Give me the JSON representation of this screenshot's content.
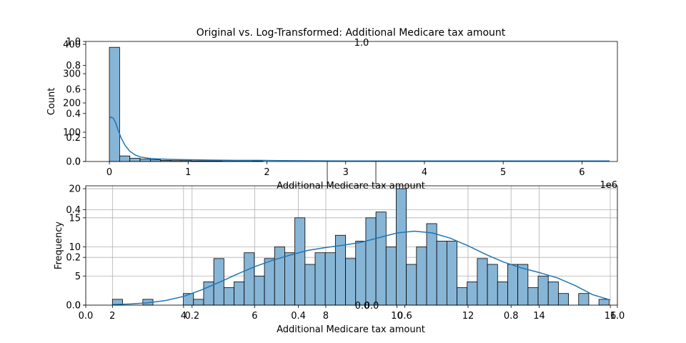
{
  "figure": {
    "title": "Original vs. Log-Transformed: Additional Medicare tax amount"
  },
  "chart_data": [
    {
      "type": "bar",
      "subtype": "histogram-with-kde",
      "title": "Original vs. Log-Transformed: Additional Medicare tax amount",
      "xlabel": "Additional Medicare tax amount",
      "ylabel": "Count",
      "x_offset_label": "1e6",
      "xlim": [
        -0.3,
        6.45
      ],
      "ylim": [
        0,
        410
      ],
      "xticks": [
        0,
        1,
        2,
        3,
        4,
        5,
        6
      ],
      "yticks": [
        0,
        100,
        200,
        300,
        400
      ],
      "grid": false,
      "bar_color": "#87b5d6",
      "line_color": "#1f77b4",
      "bins": [
        {
          "x0": 0.0,
          "x1": 0.13,
          "count": 390
        },
        {
          "x0": 0.13,
          "x1": 0.26,
          "count": 19
        },
        {
          "x0": 0.26,
          "x1": 0.39,
          "count": 11
        },
        {
          "x0": 0.39,
          "x1": 0.52,
          "count": 8
        },
        {
          "x0": 0.52,
          "x1": 0.65,
          "count": 6
        },
        {
          "x0": 0.65,
          "x1": 0.78,
          "count": 4
        },
        {
          "x0": 0.78,
          "x1": 0.91,
          "count": 3
        },
        {
          "x0": 0.91,
          "x1": 1.04,
          "count": 3
        },
        {
          "x0": 1.04,
          "x1": 1.17,
          "count": 2
        },
        {
          "x0": 1.17,
          "x1": 1.3,
          "count": 2
        },
        {
          "x0": 1.3,
          "x1": 1.43,
          "count": 2
        },
        {
          "x0": 1.43,
          "x1": 1.56,
          "count": 1
        },
        {
          "x0": 1.56,
          "x1": 1.69,
          "count": 1
        },
        {
          "x0": 1.69,
          "x1": 1.82,
          "count": 1
        },
        {
          "x0": 1.82,
          "x1": 1.95,
          "count": 2
        }
      ],
      "kde": {
        "x": [
          0.0,
          0.02,
          0.05,
          0.08,
          0.11,
          0.15,
          0.2,
          0.26,
          0.33,
          0.4,
          0.5,
          0.6,
          0.8,
          1.0,
          1.3,
          1.6,
          1.9,
          2.2,
          3.0,
          4.0,
          5.0,
          6.0,
          6.35
        ],
        "y": [
          145,
          152,
          148,
          132,
          108,
          80,
          55,
          35,
          22,
          15,
          11,
          9,
          7,
          6,
          5,
          4,
          4,
          3,
          2,
          2,
          2,
          2,
          2
        ]
      },
      "twin_axis": {
        "yticks": [
          0.0,
          0.2,
          0.4,
          0.6,
          0.8,
          1.0
        ],
        "ylim": [
          0,
          1
        ],
        "partial_label": "1.0"
      }
    },
    {
      "type": "bar",
      "subtype": "histogram-with-kde",
      "xlabel": "Additional Medicare tax amount",
      "ylabel": "Frequency",
      "xlim": [
        1.25,
        16.2
      ],
      "ylim": [
        0,
        20.5
      ],
      "xticks": [
        2,
        4,
        6,
        8,
        10,
        12,
        14,
        16
      ],
      "yticks": [
        0,
        5,
        10,
        15,
        20
      ],
      "grid": true,
      "bar_color": "#87b5d6",
      "line_color": "#1f77b4",
      "bin_start": 2.0,
      "bin_width": 0.285,
      "counts": [
        1,
        0,
        0,
        1,
        0,
        0,
        0,
        2,
        1,
        4,
        8,
        3,
        4,
        9,
        5,
        8,
        10,
        9,
        15,
        7,
        9,
        9,
        12,
        8,
        11,
        15,
        16,
        10,
        20,
        7,
        10,
        14,
        11,
        11,
        3,
        4,
        8,
        7,
        4,
        7,
        7,
        3,
        5,
        4,
        2,
        0,
        2,
        0,
        1
      ],
      "kde": {
        "x": [
          2,
          2.5,
          3,
          3.5,
          4,
          4.5,
          5,
          5.5,
          6,
          6.5,
          7,
          7.5,
          8,
          8.5,
          9,
          9.5,
          10,
          10.5,
          11,
          11.5,
          12,
          12.5,
          13,
          13.5,
          14,
          14.5,
          15,
          15.5,
          16
        ],
        "y": [
          0.1,
          0.2,
          0.4,
          0.8,
          1.5,
          2.6,
          3.9,
          5.3,
          6.6,
          7.7,
          8.6,
          9.4,
          9.9,
          10.3,
          10.8,
          11.6,
          12.4,
          12.7,
          12.4,
          11.5,
          10.2,
          8.7,
          7.4,
          6.4,
          5.6,
          4.7,
          3.4,
          1.8,
          0.9
        ]
      },
      "twin_axis": {
        "xticks": [
          0.0,
          0.2,
          0.4,
          0.6,
          0.8,
          1.0
        ],
        "yticks": [
          0.0,
          0.2,
          0.4
        ],
        "ylim": [
          0,
          0.5
        ],
        "partial_labels": [
          "0.0",
          "0.0"
        ]
      }
    }
  ]
}
